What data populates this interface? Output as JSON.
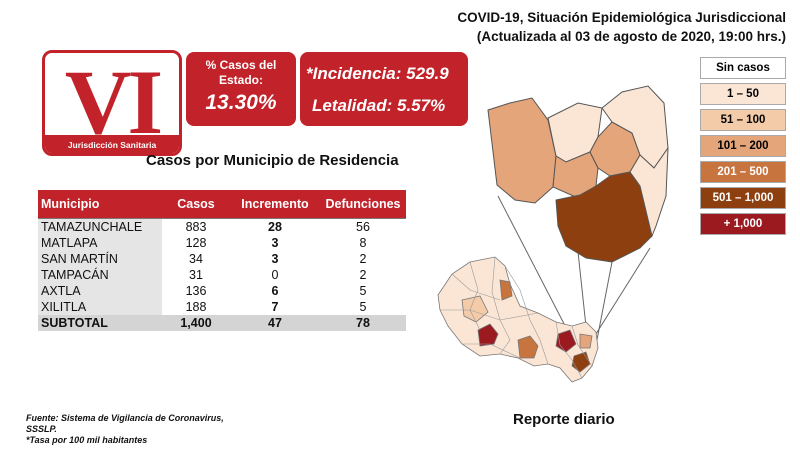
{
  "header": {
    "title_line1": "COVID-19, Situación Epidemiológica Jurisdiccional",
    "title_line2": "(Actualizada al 03 de agosto de 2020, 19:00 hrs.)"
  },
  "logo": {
    "numeral": "VI",
    "subtitle": "Jurisdicción Sanitaria"
  },
  "state_share": {
    "label_line1": "% Casos del",
    "label_line2": "Estado:",
    "value": "13.30%"
  },
  "rates": {
    "incidencia": "*Incidencia: 529.9",
    "letalidad": "Letalidad: 5.57%"
  },
  "table": {
    "title": "Casos por Municipio  de Residencia",
    "headers": [
      "Municipio",
      "Casos",
      "Incremento",
      "Defunciones"
    ],
    "rows": [
      [
        "TAMAZUNCHALE",
        "883",
        "28",
        "56"
      ],
      [
        "MATLAPA",
        "128",
        "3",
        "8"
      ],
      [
        "SAN MARTÍN",
        "34",
        "3",
        "2"
      ],
      [
        "TAMPACÁN",
        "31",
        "0",
        "2"
      ],
      [
        "AXTLA",
        "136",
        "6",
        "5"
      ],
      [
        "XILITLA",
        "188",
        "7",
        "5"
      ]
    ],
    "subtotal": [
      "SUBTOTAL",
      "1,400",
      "47",
      "78"
    ]
  },
  "legend": [
    {
      "label": "Sin casos",
      "color": "#ffffff",
      "text_color": "#000000"
    },
    {
      "label": "1 – 50",
      "color": "#fbe6d6",
      "text_color": "#000000"
    },
    {
      "label": "51 – 100",
      "color": "#f4cba8",
      "text_color": "#000000"
    },
    {
      "label": "101 – 200",
      "color": "#e4a57a",
      "text_color": "#000000"
    },
    {
      "label": "201 – 500",
      "color": "#c8743f",
      "text_color": "#ffffff"
    },
    {
      "label": "501 – 1,000",
      "color": "#8e3f10",
      "text_color": "#ffffff"
    },
    {
      "label": "+ 1,000",
      "color": "#9b1a20",
      "text_color": "#ffffff"
    }
  ],
  "map_regions": [
    {
      "name": "Xilitla",
      "fill": "#e4a57a"
    },
    {
      "name": "Axtla",
      "fill": "#e4a57a"
    },
    {
      "name": "Matlapa",
      "fill": "#e4a57a"
    },
    {
      "name": "Tampacán",
      "fill": "#fbe6d6"
    },
    {
      "name": "San Martín",
      "fill": "#fbe6d6"
    },
    {
      "name": "Tamazunchale",
      "fill": "#8e3f10"
    }
  ],
  "footnote": {
    "line1": "Fuente: Sistema de Vigilancia de Coronavirus,",
    "line2": "SSSLP.",
    "line3": "*Tasa por 100 mil habitantes"
  },
  "report_label": "Reporte diario"
}
